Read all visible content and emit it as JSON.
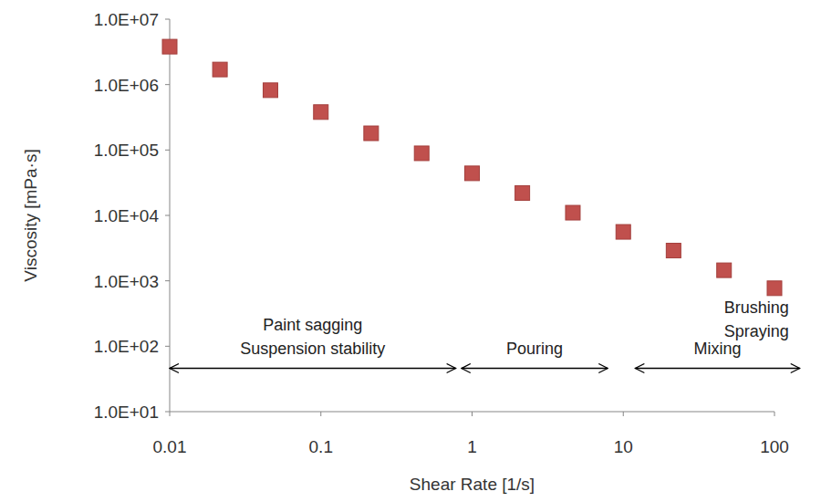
{
  "chart_data": {
    "type": "scatter",
    "x_label": "Shear Rate [1/s]",
    "y_label": "Viscosity [mPa·s]",
    "x": [
      0.01,
      0.0215,
      0.0464,
      0.1,
      0.215,
      0.464,
      1,
      2.15,
      4.64,
      10,
      21.5,
      46.4,
      100
    ],
    "values": [
      3800000,
      1700000,
      820000,
      380000,
      180000,
      89000,
      44000,
      22000,
      11000,
      5600,
      2900,
      1450,
      770
    ],
    "color": "#c0504d",
    "marker": "square",
    "log": true,
    "grid": false,
    "xlim": [
      0.01,
      100
    ],
    "xticks": [
      0.01,
      0.1,
      1,
      10,
      100
    ],
    "ylim": [
      10,
      10000000
    ],
    "yticks": [
      {
        "value": 10,
        "label": "1.0E+01"
      },
      {
        "value": 100,
        "label": "1.0E+02"
      },
      {
        "value": 1000,
        "label": "1.0E+03"
      },
      {
        "value": 10000,
        "label": "1.0E+04"
      },
      {
        "value": 100000,
        "label": "1.0E+05"
      },
      {
        "value": 1000000,
        "label": "1.0E+06"
      },
      {
        "value": 10000000,
        "label": "1.0E+07"
      }
    ],
    "annotations": [
      {
        "text": [
          "Paint sagging",
          "Suspension stability"
        ],
        "x": [
          0.01,
          0.78
        ],
        "y": 46
      },
      {
        "text": [
          "Pouring"
        ],
        "x": [
          0.85,
          7.9
        ],
        "y": 46
      },
      {
        "text": [
          "Mixing"
        ],
        "x": [
          12,
          147
        ],
        "y": 46
      },
      {
        "text": [
          "Brushing",
          "Spraying"
        ],
        "x": [
          76
        ],
        "y": 390
      }
    ]
  }
}
